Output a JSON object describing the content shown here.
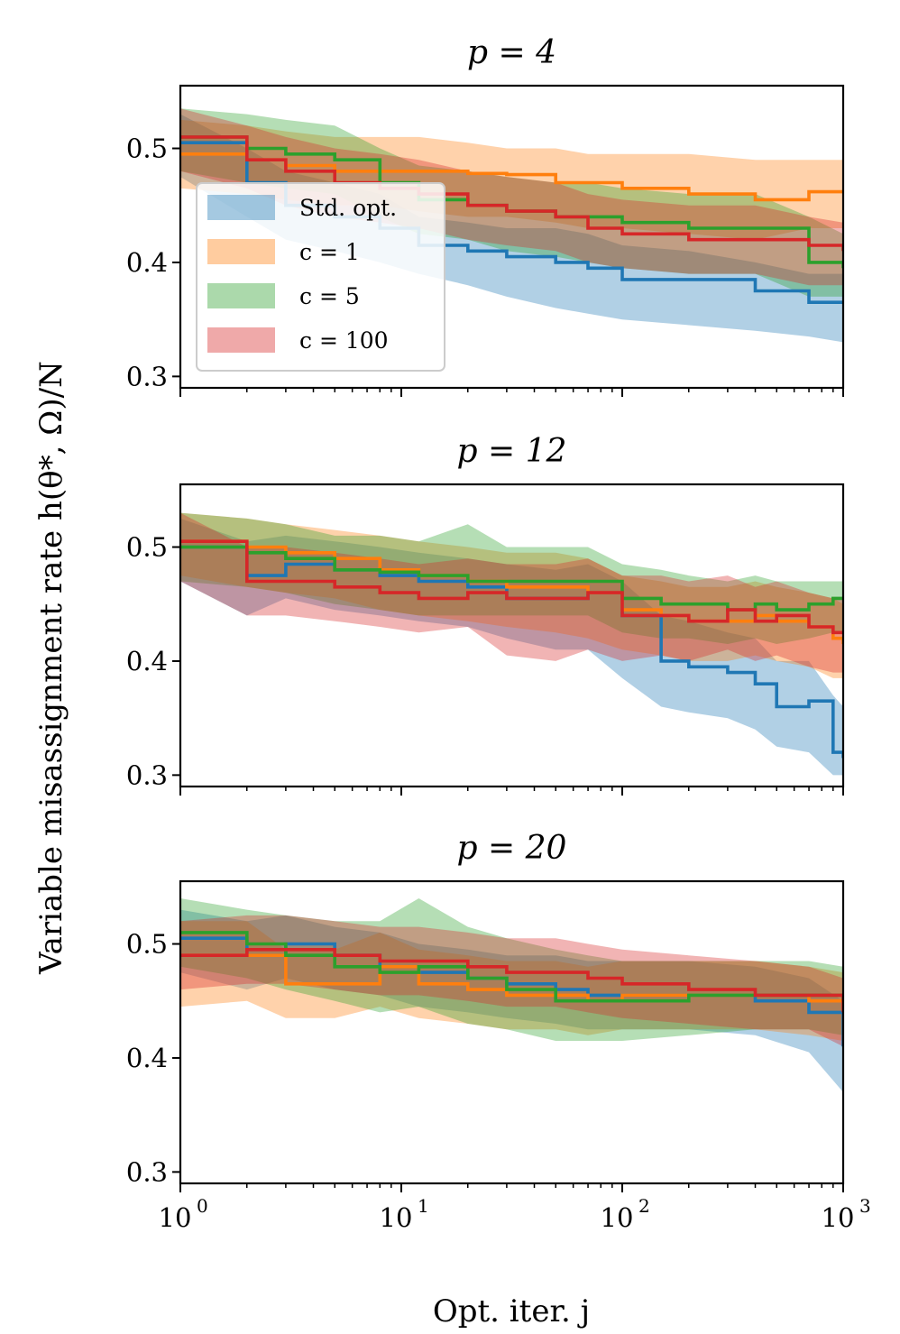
{
  "colors": {
    "std": "#1f77b4",
    "c1": "#ff7f0e",
    "c5": "#2ca02c",
    "c100": "#d62728"
  },
  "ylabel": "Variable misassignment rate h(θ*, Ω)/N",
  "xlabel": "Opt. iter. j",
  "legend": {
    "placement": "inside-left of top panel",
    "entries": [
      "Std. opt.",
      "c = 1",
      "c = 5",
      "c = 100"
    ]
  },
  "x_tick_labels": [
    "10",
    "10",
    "10",
    "10"
  ],
  "x_tick_exponents": [
    "0",
    "1",
    "2",
    "3"
  ],
  "y_tick_labels": [
    "0.3",
    "0.4",
    "0.5"
  ],
  "chart_data": [
    {
      "type": "line",
      "title": "p = 4",
      "xscale": "log",
      "xlim": [
        1,
        1000
      ],
      "ylim": [
        0.29,
        0.555
      ],
      "band_alpha": 0.35,
      "series": [
        {
          "name": "Std. opt.",
          "x": [
            1,
            2,
            3,
            5,
            8,
            12,
            20,
            30,
            50,
            70,
            100,
            200,
            400,
            700,
            1000
          ],
          "y": [
            0.505,
            0.47,
            0.45,
            0.44,
            0.43,
            0.415,
            0.41,
            0.405,
            0.4,
            0.395,
            0.385,
            0.385,
            0.375,
            0.365,
            0.365
          ],
          "lo": [
            0.475,
            0.44,
            0.42,
            0.41,
            0.4,
            0.39,
            0.38,
            0.37,
            0.36,
            0.355,
            0.35,
            0.345,
            0.34,
            0.335,
            0.33
          ],
          "hi": [
            0.53,
            0.5,
            0.48,
            0.47,
            0.46,
            0.44,
            0.435,
            0.43,
            0.43,
            0.425,
            0.415,
            0.41,
            0.4,
            0.39,
            0.39
          ]
        },
        {
          "name": "c = 1",
          "x": [
            1,
            2,
            3,
            5,
            8,
            12,
            20,
            30,
            50,
            70,
            100,
            200,
            400,
            700,
            1000
          ],
          "y": [
            0.495,
            0.49,
            0.485,
            0.48,
            0.48,
            0.48,
            0.478,
            0.477,
            0.47,
            0.47,
            0.465,
            0.46,
            0.455,
            0.462,
            0.462
          ],
          "lo": [
            0.465,
            0.46,
            0.455,
            0.45,
            0.45,
            0.445,
            0.44,
            0.44,
            0.435,
            0.43,
            0.43,
            0.425,
            0.42,
            0.43,
            0.43
          ],
          "hi": [
            0.525,
            0.52,
            0.515,
            0.51,
            0.51,
            0.51,
            0.505,
            0.5,
            0.5,
            0.495,
            0.495,
            0.495,
            0.49,
            0.49,
            0.49
          ]
        },
        {
          "name": "c = 5",
          "x": [
            1,
            2,
            3,
            5,
            8,
            12,
            20,
            30,
            50,
            70,
            100,
            200,
            400,
            700,
            1000
          ],
          "y": [
            0.51,
            0.5,
            0.495,
            0.49,
            0.47,
            0.455,
            0.45,
            0.445,
            0.44,
            0.44,
            0.435,
            0.43,
            0.43,
            0.4,
            0.395
          ],
          "lo": [
            0.48,
            0.47,
            0.465,
            0.46,
            0.44,
            0.425,
            0.42,
            0.41,
            0.405,
            0.4,
            0.395,
            0.39,
            0.39,
            0.37,
            0.37
          ],
          "hi": [
            0.535,
            0.53,
            0.525,
            0.52,
            0.5,
            0.485,
            0.48,
            0.475,
            0.47,
            0.47,
            0.465,
            0.46,
            0.46,
            0.44,
            0.425
          ]
        },
        {
          "name": "c = 100",
          "x": [
            1,
            2,
            3,
            5,
            8,
            12,
            20,
            30,
            50,
            70,
            100,
            200,
            400,
            700,
            1000
          ],
          "y": [
            0.51,
            0.49,
            0.48,
            0.47,
            0.465,
            0.46,
            0.45,
            0.445,
            0.44,
            0.43,
            0.425,
            0.42,
            0.42,
            0.415,
            0.41
          ],
          "lo": [
            0.48,
            0.465,
            0.45,
            0.44,
            0.435,
            0.43,
            0.42,
            0.415,
            0.41,
            0.4,
            0.395,
            0.39,
            0.39,
            0.38,
            0.38
          ],
          "hi": [
            0.535,
            0.52,
            0.51,
            0.5,
            0.495,
            0.49,
            0.48,
            0.475,
            0.47,
            0.46,
            0.455,
            0.45,
            0.45,
            0.44,
            0.435
          ]
        }
      ]
    },
    {
      "type": "line",
      "title": "p = 12",
      "xscale": "log",
      "xlim": [
        1,
        1000
      ],
      "ylim": [
        0.29,
        0.555
      ],
      "band_alpha": 0.35,
      "series": [
        {
          "name": "Std. opt.",
          "x": [
            1,
            2,
            3,
            5,
            8,
            12,
            20,
            30,
            50,
            70,
            100,
            150,
            200,
            300,
            400,
            500,
            700,
            900,
            1000
          ],
          "y": [
            0.5,
            0.475,
            0.485,
            0.48,
            0.475,
            0.47,
            0.465,
            0.455,
            0.455,
            0.46,
            0.44,
            0.4,
            0.395,
            0.39,
            0.38,
            0.36,
            0.365,
            0.32,
            0.315
          ],
          "lo": [
            0.47,
            0.44,
            0.455,
            0.445,
            0.44,
            0.435,
            0.43,
            0.42,
            0.41,
            0.41,
            0.385,
            0.36,
            0.355,
            0.35,
            0.34,
            0.325,
            0.32,
            0.3,
            0.3
          ],
          "hi": [
            0.525,
            0.505,
            0.51,
            0.505,
            0.5,
            0.495,
            0.49,
            0.485,
            0.48,
            0.485,
            0.47,
            0.44,
            0.435,
            0.425,
            0.42,
            0.4,
            0.4,
            0.37,
            0.36
          ]
        },
        {
          "name": "c = 1",
          "x": [
            1,
            2,
            3,
            5,
            8,
            12,
            20,
            30,
            50,
            70,
            100,
            150,
            200,
            300,
            400,
            500,
            700,
            900,
            1000
          ],
          "y": [
            0.505,
            0.5,
            0.495,
            0.49,
            0.48,
            0.475,
            0.47,
            0.465,
            0.465,
            0.46,
            0.445,
            0.44,
            0.435,
            0.435,
            0.44,
            0.435,
            0.43,
            0.42,
            0.415
          ],
          "lo": [
            0.475,
            0.465,
            0.46,
            0.455,
            0.445,
            0.44,
            0.435,
            0.43,
            0.425,
            0.42,
            0.41,
            0.405,
            0.4,
            0.4,
            0.405,
            0.4,
            0.395,
            0.385,
            0.385
          ],
          "hi": [
            0.53,
            0.525,
            0.52,
            0.515,
            0.51,
            0.505,
            0.5,
            0.495,
            0.495,
            0.49,
            0.475,
            0.47,
            0.465,
            0.465,
            0.47,
            0.465,
            0.46,
            0.455,
            0.45
          ]
        },
        {
          "name": "c = 5",
          "x": [
            1,
            2,
            3,
            5,
            8,
            12,
            20,
            30,
            50,
            70,
            100,
            150,
            200,
            300,
            400,
            500,
            700,
            900,
            1000
          ],
          "y": [
            0.5,
            0.495,
            0.49,
            0.48,
            0.478,
            0.475,
            0.47,
            0.47,
            0.47,
            0.47,
            0.455,
            0.45,
            0.45,
            0.445,
            0.45,
            0.445,
            0.45,
            0.455,
            0.455
          ],
          "lo": [
            0.47,
            0.465,
            0.46,
            0.45,
            0.445,
            0.44,
            0.44,
            0.44,
            0.44,
            0.44,
            0.425,
            0.42,
            0.42,
            0.415,
            0.42,
            0.415,
            0.42,
            0.425,
            0.425
          ],
          "hi": [
            0.53,
            0.525,
            0.52,
            0.51,
            0.51,
            0.505,
            0.52,
            0.5,
            0.5,
            0.5,
            0.485,
            0.48,
            0.475,
            0.47,
            0.475,
            0.47,
            0.47,
            0.47,
            0.47
          ]
        },
        {
          "name": "c = 100",
          "x": [
            1,
            2,
            3,
            5,
            8,
            12,
            20,
            30,
            50,
            70,
            100,
            150,
            200,
            300,
            400,
            500,
            700,
            900,
            1000
          ],
          "y": [
            0.505,
            0.47,
            0.47,
            0.465,
            0.46,
            0.455,
            0.46,
            0.455,
            0.455,
            0.46,
            0.44,
            0.44,
            0.435,
            0.445,
            0.435,
            0.44,
            0.43,
            0.425,
            0.425
          ],
          "lo": [
            0.47,
            0.44,
            0.44,
            0.435,
            0.43,
            0.425,
            0.43,
            0.405,
            0.4,
            0.41,
            0.4,
            0.405,
            0.4,
            0.41,
            0.4,
            0.405,
            0.395,
            0.39,
            0.39
          ],
          "hi": [
            0.53,
            0.5,
            0.5,
            0.495,
            0.49,
            0.485,
            0.49,
            0.485,
            0.485,
            0.49,
            0.475,
            0.475,
            0.47,
            0.475,
            0.465,
            0.47,
            0.46,
            0.455,
            0.455
          ]
        }
      ]
    },
    {
      "type": "line",
      "title": "p = 20",
      "xscale": "log",
      "xlim": [
        1,
        1000
      ],
      "ylim": [
        0.29,
        0.555
      ],
      "band_alpha": 0.35,
      "series": [
        {
          "name": "Std. opt.",
          "x": [
            1,
            2,
            3,
            5,
            8,
            12,
            20,
            30,
            50,
            70,
            100,
            200,
            400,
            700,
            1000
          ],
          "y": [
            0.505,
            0.49,
            0.5,
            0.49,
            0.48,
            0.475,
            0.47,
            0.465,
            0.46,
            0.455,
            0.455,
            0.455,
            0.45,
            0.44,
            0.41
          ],
          "lo": [
            0.475,
            0.46,
            0.47,
            0.46,
            0.455,
            0.445,
            0.44,
            0.435,
            0.43,
            0.425,
            0.425,
            0.425,
            0.42,
            0.405,
            0.37
          ],
          "hi": [
            0.53,
            0.52,
            0.525,
            0.515,
            0.51,
            0.5,
            0.495,
            0.49,
            0.49,
            0.485,
            0.485,
            0.485,
            0.48,
            0.47,
            0.45
          ]
        },
        {
          "name": "c = 1",
          "x": [
            1,
            2,
            3,
            5,
            8,
            12,
            20,
            30,
            50,
            70,
            100,
            200,
            400,
            700,
            1000
          ],
          "y": [
            0.49,
            0.49,
            0.465,
            0.465,
            0.48,
            0.465,
            0.46,
            0.455,
            0.455,
            0.45,
            0.455,
            0.455,
            0.455,
            0.45,
            0.445
          ],
          "lo": [
            0.445,
            0.45,
            0.435,
            0.435,
            0.445,
            0.435,
            0.43,
            0.425,
            0.425,
            0.42,
            0.425,
            0.425,
            0.425,
            0.42,
            0.415
          ],
          "hi": [
            0.52,
            0.52,
            0.495,
            0.495,
            0.51,
            0.495,
            0.49,
            0.485,
            0.485,
            0.48,
            0.485,
            0.485,
            0.485,
            0.48,
            0.475
          ]
        },
        {
          "name": "c = 5",
          "x": [
            1,
            2,
            3,
            5,
            8,
            12,
            20,
            30,
            50,
            70,
            100,
            200,
            400,
            700,
            1000
          ],
          "y": [
            0.51,
            0.5,
            0.49,
            0.48,
            0.475,
            0.48,
            0.47,
            0.46,
            0.45,
            0.45,
            0.45,
            0.455,
            0.455,
            0.455,
            0.45
          ],
          "lo": [
            0.48,
            0.47,
            0.46,
            0.45,
            0.44,
            0.445,
            0.43,
            0.425,
            0.415,
            0.415,
            0.415,
            0.42,
            0.425,
            0.425,
            0.42
          ],
          "hi": [
            0.54,
            0.53,
            0.525,
            0.52,
            0.52,
            0.54,
            0.515,
            0.505,
            0.495,
            0.49,
            0.485,
            0.485,
            0.485,
            0.485,
            0.48
          ]
        },
        {
          "name": "c = 100",
          "x": [
            1,
            2,
            3,
            5,
            8,
            12,
            20,
            30,
            50,
            70,
            100,
            200,
            400,
            700,
            1000
          ],
          "y": [
            0.49,
            0.495,
            0.495,
            0.49,
            0.485,
            0.485,
            0.48,
            0.475,
            0.475,
            0.47,
            0.465,
            0.46,
            0.455,
            0.455,
            0.44
          ],
          "lo": [
            0.46,
            0.465,
            0.465,
            0.46,
            0.455,
            0.455,
            0.45,
            0.445,
            0.445,
            0.44,
            0.435,
            0.43,
            0.425,
            0.425,
            0.41
          ],
          "hi": [
            0.52,
            0.525,
            0.525,
            0.52,
            0.515,
            0.515,
            0.51,
            0.505,
            0.505,
            0.5,
            0.495,
            0.49,
            0.485,
            0.48,
            0.47
          ]
        }
      ]
    }
  ]
}
